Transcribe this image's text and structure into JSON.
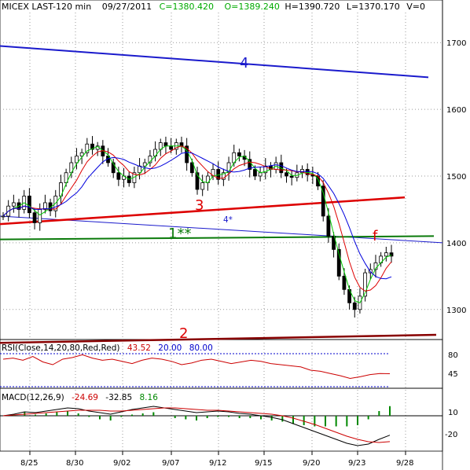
{
  "header": {
    "symbol": "MICEX LAST-120 min",
    "date": "09/27/2011",
    "close": "C=1380.420",
    "open": "O=1389.240",
    "high": "H=1390.720",
    "low": "L=1370.170",
    "volume": "V=0"
  },
  "colors": {
    "header_black": "#000000",
    "close_green": "#00aa00",
    "open_green": "#00aa00",
    "rsi_red": "#cc0000",
    "rsi_blue": "#0000cc",
    "macd_red": "#cc0000",
    "macd_green": "#008800",
    "ma_fast": "#00cc00",
    "ma_mid": "#dd0000",
    "ma_slow": "#0000dd",
    "line4": "#1a1acc",
    "line3": "#dd0000",
    "line2": "#880000",
    "line1": "#0a7a0a"
  },
  "annotations": {
    "line4": "4",
    "line4_star": "4*",
    "line3": "3",
    "line2": "2",
    "line1": "1**",
    "f_label": "f"
  },
  "rsi": {
    "label": "RSI(Close,14,20,80,Red,Red)",
    "value": "43.52",
    "low": "20.00",
    "high": "80.00",
    "ticks": [
      "80",
      "45"
    ]
  },
  "macd": {
    "label": "MACD(12,26,9)",
    "macd": "-24.69",
    "signal": "-32.85",
    "hist": "8.16",
    "ticks": [
      "10",
      "-20"
    ]
  },
  "chart_data": {
    "type": "candlestick",
    "title": "MICEX LAST-120 min",
    "x_tick_labels": [
      "8/25",
      "8/30",
      "9/02",
      "9/07",
      "9/12",
      "9/15",
      "9/20",
      "9/23",
      "9/28"
    ],
    "y_tick_labels": [
      "1700",
      "1600",
      "1500",
      "1400",
      "1300"
    ],
    "ylim": [
      1255,
      1745
    ],
    "grid": true,
    "price_series_description": "2-hour candles from late August to 27 September 2011",
    "closes": [
      1440,
      1455,
      1460,
      1450,
      1470,
      1445,
      1430,
      1450,
      1460,
      1448,
      1470,
      1490,
      1505,
      1520,
      1530,
      1535,
      1548,
      1540,
      1545,
      1530,
      1520,
      1505,
      1495,
      1500,
      1490,
      1505,
      1515,
      1520,
      1530,
      1540,
      1550,
      1545,
      1540,
      1550,
      1545,
      1520,
      1505,
      1480,
      1490,
      1500,
      1510,
      1495,
      1505,
      1520,
      1535,
      1530,
      1525,
      1510,
      1500,
      1505,
      1515,
      1510,
      1520,
      1505,
      1500,
      1498,
      1505,
      1510,
      1502,
      1500,
      1485,
      1440,
      1410,
      1390,
      1350,
      1330,
      1310,
      1300,
      1320,
      1355,
      1360,
      1370,
      1380,
      1385,
      1380
    ],
    "moving_averages": [
      {
        "name": "fast",
        "color": "#00cc00"
      },
      {
        "name": "mid",
        "color": "#dd0000"
      },
      {
        "name": "slow",
        "color": "#0000dd"
      }
    ],
    "trendlines": [
      {
        "label": "4",
        "y_start": 1695,
        "y_end": 1648
      },
      {
        "label": "4*",
        "y_start": 1440,
        "y_end": 1400
      },
      {
        "label": "3",
        "y_start": 1428,
        "y_end": 1468
      },
      {
        "label": "2",
        "y_start": 1250,
        "y_end": 1262
      },
      {
        "label": "1**",
        "y_start": 1405,
        "y_end": 1410
      }
    ],
    "rsi_values": [
      70,
      72,
      68,
      75,
      65,
      60,
      70,
      73,
      78,
      72,
      68,
      70,
      66,
      62,
      68,
      72,
      70,
      66,
      60,
      63,
      68,
      70,
      66,
      62,
      65,
      68,
      66,
      62,
      60,
      58,
      56,
      50,
      48,
      44,
      40,
      35,
      38,
      42,
      44,
      43.52
    ],
    "macd_values": [
      0,
      2,
      5,
      4,
      6,
      8,
      10,
      9,
      6,
      4,
      2,
      5,
      8,
      10,
      12,
      10,
      8,
      6,
      4,
      5,
      6,
      5,
      3,
      2,
      0,
      -2,
      -5,
      -10,
      -15,
      -20,
      -25,
      -30,
      -35,
      -38,
      -36,
      -30,
      -24.69
    ],
    "signal_values": [
      0,
      1,
      2,
      3,
      4,
      5,
      6,
      7,
      7,
      7,
      6,
      6,
      7,
      8,
      9,
      10,
      10,
      9,
      8,
      7,
      7,
      6,
      5,
      4,
      3,
      2,
      0,
      -3,
      -7,
      -11,
      -16,
      -21,
      -26,
      -30,
      -33,
      -34,
      -32.85
    ]
  }
}
